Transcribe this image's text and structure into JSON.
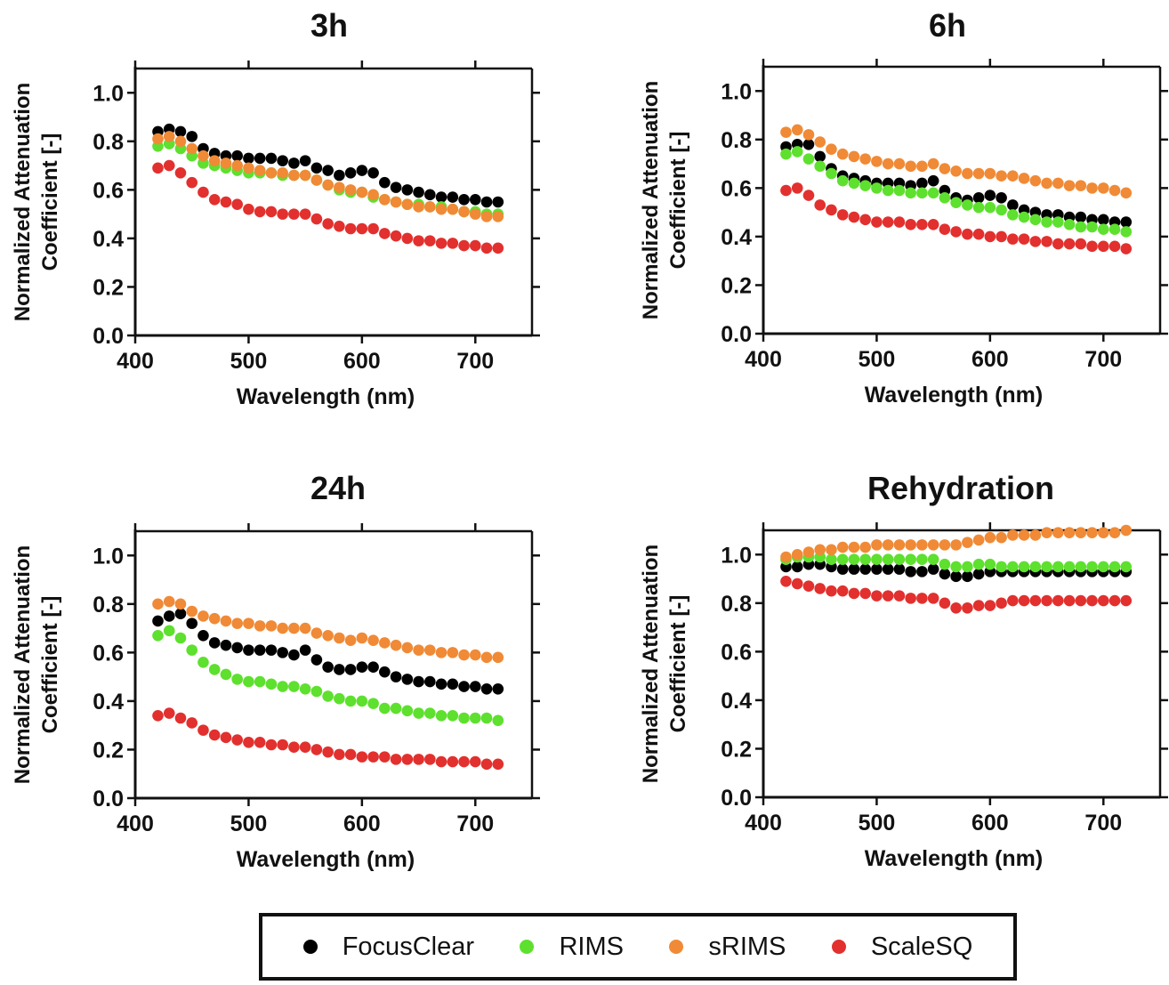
{
  "colors": {
    "FocusClear": "#000000",
    "RIMS": "#5ee02e",
    "sRIMS": "#f08a36",
    "ScaleSQ": "#e2302e",
    "axis": "#111111"
  },
  "legend": {
    "items": [
      {
        "label": "FocusClear",
        "color": "#000000"
      },
      {
        "label": "RIMS",
        "color": "#5ee02e"
      },
      {
        "label": "sRIMS",
        "color": "#f08a36"
      },
      {
        "label": "ScaleSQ",
        "color": "#e2302e"
      }
    ]
  },
  "chart_data": [
    {
      "type": "scatter",
      "title": "3h",
      "xlabel": "Wavelength (nm)",
      "ylabel": "Normalized Attenuation Coefficient [-]",
      "xlim": [
        400,
        750
      ],
      "ylim": [
        0.0,
        1.1
      ],
      "xticks": [
        "400",
        "500",
        "600",
        "700"
      ],
      "yticks": [
        "0.0",
        "0.2",
        "0.4",
        "0.6",
        "0.8",
        "1.0"
      ],
      "x": [
        420,
        430,
        440,
        450,
        460,
        470,
        480,
        490,
        500,
        510,
        520,
        530,
        540,
        550,
        560,
        570,
        580,
        590,
        600,
        610,
        620,
        630,
        640,
        650,
        660,
        670,
        680,
        690,
        700,
        710,
        720
      ],
      "series": [
        {
          "name": "FocusClear",
          "values": [
            0.84,
            0.85,
            0.84,
            0.82,
            0.77,
            0.75,
            0.74,
            0.74,
            0.73,
            0.73,
            0.73,
            0.72,
            0.71,
            0.72,
            0.69,
            0.68,
            0.66,
            0.67,
            0.68,
            0.67,
            0.63,
            0.61,
            0.6,
            0.59,
            0.58,
            0.57,
            0.57,
            0.56,
            0.56,
            0.55,
            0.55
          ]
        },
        {
          "name": "RIMS",
          "values": [
            0.78,
            0.79,
            0.77,
            0.74,
            0.71,
            0.7,
            0.69,
            0.68,
            0.67,
            0.67,
            0.67,
            0.66,
            0.66,
            0.66,
            0.64,
            0.62,
            0.6,
            0.59,
            0.59,
            0.57,
            0.56,
            0.55,
            0.54,
            0.54,
            0.53,
            0.53,
            0.52,
            0.51,
            0.51,
            0.5,
            0.5
          ]
        },
        {
          "name": "sRIMS",
          "values": [
            0.81,
            0.82,
            0.8,
            0.77,
            0.74,
            0.72,
            0.71,
            0.7,
            0.69,
            0.68,
            0.67,
            0.67,
            0.66,
            0.66,
            0.64,
            0.62,
            0.61,
            0.6,
            0.59,
            0.58,
            0.56,
            0.55,
            0.54,
            0.53,
            0.53,
            0.52,
            0.52,
            0.51,
            0.5,
            0.49,
            0.49
          ]
        },
        {
          "name": "ScaleSQ",
          "values": [
            0.69,
            0.7,
            0.67,
            0.63,
            0.59,
            0.56,
            0.55,
            0.54,
            0.52,
            0.51,
            0.51,
            0.5,
            0.5,
            0.5,
            0.48,
            0.46,
            0.45,
            0.44,
            0.44,
            0.44,
            0.42,
            0.41,
            0.4,
            0.39,
            0.39,
            0.38,
            0.38,
            0.37,
            0.37,
            0.36,
            0.36
          ]
        }
      ]
    },
    {
      "type": "scatter",
      "title": "6h",
      "xlabel": "Wavelength (nm)",
      "ylabel": "Normalized Attenuation Coefficient [-]",
      "xlim": [
        400,
        750
      ],
      "ylim": [
        0.0,
        1.1
      ],
      "xticks": [
        "400",
        "500",
        "600",
        "700"
      ],
      "yticks": [
        "0.0",
        "0.2",
        "0.4",
        "0.6",
        "0.8",
        "1.0"
      ],
      "x": [
        420,
        430,
        440,
        450,
        460,
        470,
        480,
        490,
        500,
        510,
        520,
        530,
        540,
        550,
        560,
        570,
        580,
        590,
        600,
        610,
        620,
        630,
        640,
        650,
        660,
        670,
        680,
        690,
        700,
        710,
        720
      ],
      "series": [
        {
          "name": "FocusClear",
          "values": [
            0.77,
            0.78,
            0.78,
            0.73,
            0.68,
            0.65,
            0.64,
            0.63,
            0.62,
            0.62,
            0.62,
            0.61,
            0.62,
            0.63,
            0.59,
            0.56,
            0.55,
            0.56,
            0.57,
            0.56,
            0.53,
            0.51,
            0.5,
            0.49,
            0.49,
            0.48,
            0.48,
            0.47,
            0.47,
            0.46,
            0.46
          ]
        },
        {
          "name": "RIMS",
          "values": [
            0.74,
            0.75,
            0.72,
            0.69,
            0.66,
            0.63,
            0.62,
            0.61,
            0.6,
            0.59,
            0.59,
            0.58,
            0.58,
            0.58,
            0.56,
            0.54,
            0.53,
            0.52,
            0.52,
            0.51,
            0.49,
            0.48,
            0.47,
            0.46,
            0.46,
            0.45,
            0.44,
            0.44,
            0.43,
            0.43,
            0.42
          ]
        },
        {
          "name": "sRIMS",
          "values": [
            0.83,
            0.84,
            0.82,
            0.79,
            0.76,
            0.74,
            0.73,
            0.72,
            0.71,
            0.7,
            0.7,
            0.69,
            0.69,
            0.7,
            0.68,
            0.67,
            0.66,
            0.66,
            0.66,
            0.65,
            0.65,
            0.64,
            0.63,
            0.62,
            0.62,
            0.61,
            0.61,
            0.6,
            0.6,
            0.59,
            0.58
          ]
        },
        {
          "name": "ScaleSQ",
          "values": [
            0.59,
            0.6,
            0.57,
            0.53,
            0.51,
            0.49,
            0.48,
            0.47,
            0.46,
            0.46,
            0.46,
            0.45,
            0.45,
            0.45,
            0.43,
            0.42,
            0.41,
            0.41,
            0.4,
            0.4,
            0.39,
            0.39,
            0.38,
            0.38,
            0.37,
            0.37,
            0.37,
            0.36,
            0.36,
            0.36,
            0.35
          ]
        }
      ]
    },
    {
      "type": "scatter",
      "title": "24h",
      "xlabel": "Wavelength (nm)",
      "ylabel": "Normalized Attenuation Coefficient [-]",
      "xlim": [
        400,
        750
      ],
      "ylim": [
        0.0,
        1.1
      ],
      "xticks": [
        "400",
        "500",
        "600",
        "700"
      ],
      "yticks": [
        "0.0",
        "0.2",
        "0.4",
        "0.6",
        "0.8",
        "1.0"
      ],
      "x": [
        420,
        430,
        440,
        450,
        460,
        470,
        480,
        490,
        500,
        510,
        520,
        530,
        540,
        550,
        560,
        570,
        580,
        590,
        600,
        610,
        620,
        630,
        640,
        650,
        660,
        670,
        680,
        690,
        700,
        710,
        720
      ],
      "series": [
        {
          "name": "FocusClear",
          "values": [
            0.73,
            0.75,
            0.76,
            0.72,
            0.67,
            0.64,
            0.63,
            0.62,
            0.61,
            0.61,
            0.61,
            0.6,
            0.59,
            0.61,
            0.57,
            0.54,
            0.53,
            0.53,
            0.54,
            0.54,
            0.52,
            0.5,
            0.49,
            0.48,
            0.48,
            0.47,
            0.47,
            0.46,
            0.46,
            0.45,
            0.45
          ]
        },
        {
          "name": "RIMS",
          "values": [
            0.67,
            0.69,
            0.66,
            0.61,
            0.56,
            0.53,
            0.51,
            0.49,
            0.48,
            0.48,
            0.47,
            0.46,
            0.46,
            0.45,
            0.44,
            0.42,
            0.41,
            0.4,
            0.4,
            0.39,
            0.37,
            0.37,
            0.36,
            0.35,
            0.35,
            0.34,
            0.34,
            0.33,
            0.33,
            0.33,
            0.32
          ]
        },
        {
          "name": "sRIMS",
          "values": [
            0.8,
            0.81,
            0.8,
            0.77,
            0.75,
            0.74,
            0.73,
            0.72,
            0.72,
            0.71,
            0.71,
            0.7,
            0.7,
            0.7,
            0.68,
            0.67,
            0.66,
            0.65,
            0.66,
            0.65,
            0.64,
            0.63,
            0.62,
            0.61,
            0.61,
            0.6,
            0.6,
            0.59,
            0.59,
            0.58,
            0.58
          ]
        },
        {
          "name": "ScaleSQ",
          "values": [
            0.34,
            0.35,
            0.33,
            0.31,
            0.28,
            0.26,
            0.25,
            0.24,
            0.23,
            0.23,
            0.22,
            0.22,
            0.21,
            0.21,
            0.2,
            0.19,
            0.18,
            0.18,
            0.17,
            0.17,
            0.17,
            0.16,
            0.16,
            0.16,
            0.16,
            0.15,
            0.15,
            0.15,
            0.15,
            0.14,
            0.14
          ]
        }
      ]
    },
    {
      "type": "scatter",
      "title": "Rehydration",
      "xlabel": "Wavelength (nm)",
      "ylabel": "Normalized Attenuation Coefficient [-]",
      "xlim": [
        400,
        750
      ],
      "ylim": [
        0.0,
        1.1
      ],
      "xticks": [
        "400",
        "500",
        "600",
        "700"
      ],
      "yticks": [
        "0.0",
        "0.2",
        "0.4",
        "0.6",
        "0.8",
        "1.0"
      ],
      "x": [
        420,
        430,
        440,
        450,
        460,
        470,
        480,
        490,
        500,
        510,
        520,
        530,
        540,
        550,
        560,
        570,
        580,
        590,
        600,
        610,
        620,
        630,
        640,
        650,
        660,
        670,
        680,
        690,
        700,
        710,
        720
      ],
      "series": [
        {
          "name": "FocusClear",
          "values": [
            0.95,
            0.95,
            0.96,
            0.96,
            0.95,
            0.94,
            0.94,
            0.94,
            0.94,
            0.94,
            0.94,
            0.93,
            0.93,
            0.94,
            0.92,
            0.91,
            0.91,
            0.92,
            0.93,
            0.93,
            0.93,
            0.93,
            0.93,
            0.93,
            0.93,
            0.93,
            0.93,
            0.93,
            0.93,
            0.93,
            0.93
          ]
        },
        {
          "name": "RIMS",
          "values": [
            0.98,
            0.99,
            0.99,
            0.99,
            0.98,
            0.98,
            0.98,
            0.98,
            0.98,
            0.98,
            0.98,
            0.98,
            0.98,
            0.98,
            0.96,
            0.95,
            0.95,
            0.96,
            0.96,
            0.95,
            0.95,
            0.95,
            0.95,
            0.95,
            0.95,
            0.95,
            0.95,
            0.95,
            0.95,
            0.95,
            0.95
          ]
        },
        {
          "name": "sRIMS",
          "values": [
            0.99,
            1.0,
            1.01,
            1.02,
            1.02,
            1.03,
            1.03,
            1.03,
            1.04,
            1.04,
            1.04,
            1.04,
            1.04,
            1.04,
            1.04,
            1.04,
            1.05,
            1.06,
            1.07,
            1.07,
            1.08,
            1.08,
            1.08,
            1.09,
            1.09,
            1.09,
            1.09,
            1.09,
            1.09,
            1.09,
            1.1
          ]
        },
        {
          "name": "ScaleSQ",
          "values": [
            0.89,
            0.88,
            0.87,
            0.86,
            0.85,
            0.85,
            0.84,
            0.84,
            0.83,
            0.83,
            0.83,
            0.82,
            0.82,
            0.82,
            0.8,
            0.78,
            0.78,
            0.79,
            0.79,
            0.8,
            0.81,
            0.81,
            0.81,
            0.81,
            0.81,
            0.81,
            0.81,
            0.81,
            0.81,
            0.81,
            0.81
          ]
        }
      ]
    }
  ]
}
